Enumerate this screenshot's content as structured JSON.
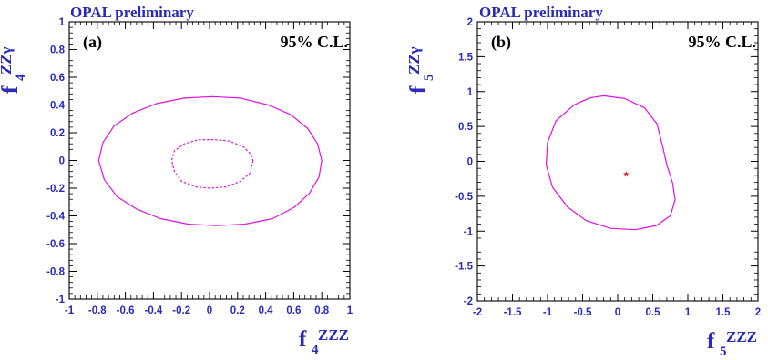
{
  "colors": {
    "text": "#2a2ab8",
    "contour": "#e010e0",
    "marker": "#e01818",
    "frame": "#000000"
  },
  "chart_data": [
    {
      "type": "line",
      "header": "OPAL preliminary",
      "panel_label": "(a)",
      "confidence_label": "95% C.L.",
      "xlabel": {
        "base": "f",
        "sub": "4",
        "sup": "ZZZ"
      },
      "ylabel": {
        "base": "f",
        "sub": "4",
        "sup": "ZZγ"
      },
      "xlim": [
        -1,
        1
      ],
      "ylim": [
        -1,
        1
      ],
      "xticks": [
        "-1",
        "-0.8",
        "-0.6",
        "-0.4",
        "-0.2",
        "0",
        "0.2",
        "0.4",
        "0.6",
        "0.8",
        "1"
      ],
      "yticks": [
        "-1",
        "-0.8",
        "-0.6",
        "-0.4",
        "-0.2",
        "0",
        "0.2",
        "0.4",
        "0.6",
        "0.8",
        "1"
      ],
      "series": [
        {
          "style": "solid",
          "points": [
            [
              0.8,
              0.0
            ],
            [
              0.78,
              -0.12
            ],
            [
              0.71,
              -0.24
            ],
            [
              0.6,
              -0.34
            ],
            [
              0.45,
              -0.42
            ],
            [
              0.25,
              -0.46
            ],
            [
              0.05,
              -0.47
            ],
            [
              -0.15,
              -0.46
            ],
            [
              -0.35,
              -0.42
            ],
            [
              -0.52,
              -0.35
            ],
            [
              -0.66,
              -0.26
            ],
            [
              -0.75,
              -0.14
            ],
            [
              -0.79,
              0.0
            ],
            [
              -0.76,
              0.13
            ],
            [
              -0.68,
              0.25
            ],
            [
              -0.55,
              0.34
            ],
            [
              -0.38,
              0.41
            ],
            [
              -0.18,
              0.45
            ],
            [
              0.02,
              0.46
            ],
            [
              0.22,
              0.45
            ],
            [
              0.42,
              0.4
            ],
            [
              0.58,
              0.33
            ],
            [
              0.7,
              0.23
            ],
            [
              0.77,
              0.12
            ],
            [
              0.8,
              0.0
            ]
          ]
        },
        {
          "style": "dashed",
          "points": [
            [
              0.31,
              0.0
            ],
            [
              0.29,
              -0.09
            ],
            [
              0.22,
              -0.15
            ],
            [
              0.12,
              -0.19
            ],
            [
              0.0,
              -0.2
            ],
            [
              -0.1,
              -0.19
            ],
            [
              -0.2,
              -0.15
            ],
            [
              -0.25,
              -0.08
            ],
            [
              -0.27,
              0.0
            ],
            [
              -0.25,
              0.07
            ],
            [
              -0.18,
              0.12
            ],
            [
              -0.08,
              0.15
            ],
            [
              0.03,
              0.15
            ],
            [
              0.14,
              0.14
            ],
            [
              0.24,
              0.1
            ],
            [
              0.29,
              0.05
            ],
            [
              0.31,
              0.0
            ]
          ]
        }
      ]
    },
    {
      "type": "line",
      "header": "OPAL preliminary",
      "panel_label": "(b)",
      "confidence_label": "95% C.L.",
      "xlabel": {
        "base": "f",
        "sub": "5",
        "sup": "ZZZ"
      },
      "ylabel": {
        "base": "f",
        "sub": "5",
        "sup": "ZZγ"
      },
      "xlim": [
        -2,
        2
      ],
      "ylim": [
        -2,
        2
      ],
      "xticks": [
        "-2",
        "-1.5",
        "-1",
        "-0.5",
        "0",
        "0.5",
        "1",
        "1.5",
        "2"
      ],
      "yticks": [
        "-2",
        "-1.5",
        "-1",
        "-0.5",
        "0",
        "0.5",
        "1",
        "1.5",
        "2"
      ],
      "series": [
        {
          "style": "solid",
          "points": [
            [
              -0.2,
              0.94
            ],
            [
              0.1,
              0.9
            ],
            [
              0.38,
              0.77
            ],
            [
              0.56,
              0.54
            ],
            [
              0.64,
              0.22
            ],
            [
              0.7,
              -0.05
            ],
            [
              0.78,
              -0.3
            ],
            [
              0.82,
              -0.55
            ],
            [
              0.75,
              -0.78
            ],
            [
              0.55,
              -0.92
            ],
            [
              0.25,
              -0.98
            ],
            [
              -0.1,
              -0.96
            ],
            [
              -0.45,
              -0.85
            ],
            [
              -0.72,
              -0.65
            ],
            [
              -0.93,
              -0.37
            ],
            [
              -1.02,
              -0.05
            ],
            [
              -1.0,
              0.27
            ],
            [
              -0.88,
              0.58
            ],
            [
              -0.62,
              0.81
            ],
            [
              -0.4,
              0.91
            ],
            [
              -0.2,
              0.94
            ]
          ]
        }
      ],
      "marker": {
        "x": 0.12,
        "y": -0.18,
        "symbol": "star"
      }
    }
  ]
}
